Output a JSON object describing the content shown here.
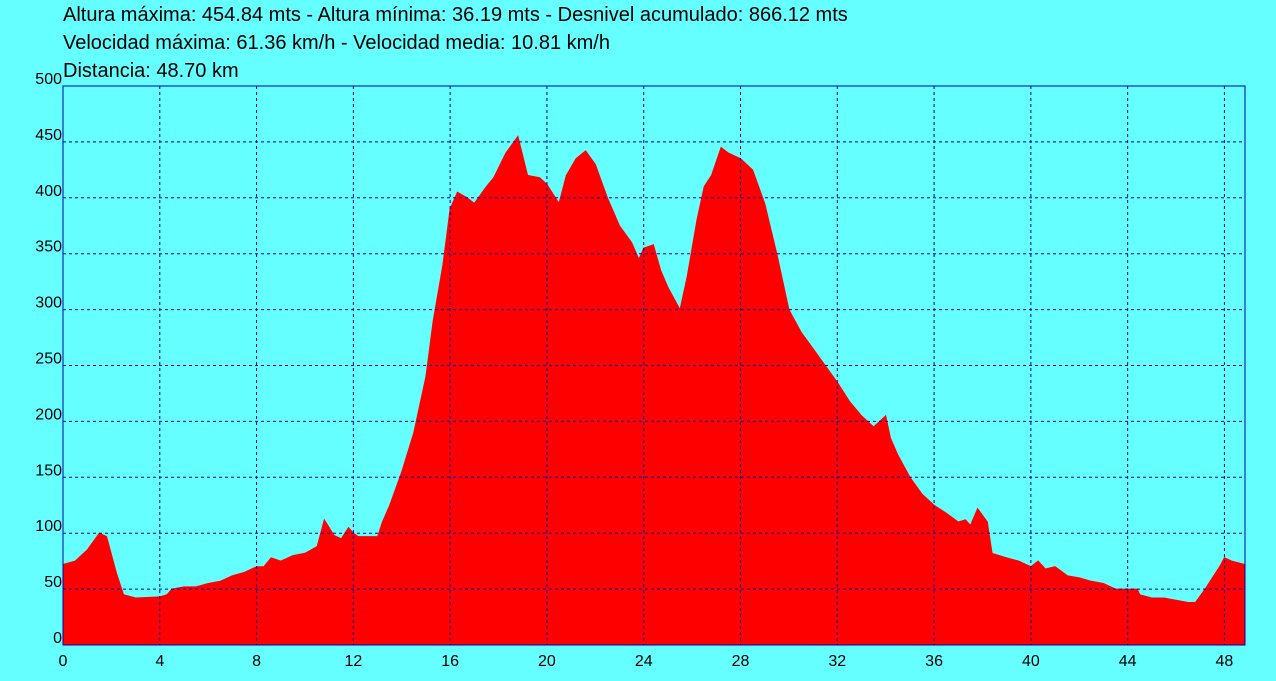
{
  "chart_data": {
    "type": "area",
    "title": "Altura máxima: 454.84 mts - Altura mínima: 36.19 mts - Desnivel acumulado: 866.12 mts",
    "subtitle": "Velocidad máxima: 61.36 km/h - Velocidad media: 10.81 km/h",
    "annotation": "Distancia: 48.70 km",
    "color": "#ff0000",
    "background": "#66ffff",
    "grid": true,
    "xlim": [
      0,
      48.85
    ],
    "xticks": [
      0,
      4,
      8,
      12,
      16,
      20,
      24,
      28,
      32,
      36,
      40,
      44,
      48
    ],
    "ylim": [
      0,
      500
    ],
    "yticks": [
      0,
      50,
      100,
      150,
      200,
      250,
      300,
      350,
      400,
      450,
      500
    ],
    "x": [
      0,
      0.5,
      1.0,
      1.5,
      1.8,
      2.2,
      2.5,
      3,
      4,
      4.3,
      4.5,
      5,
      5.5,
      6,
      6.5,
      7,
      7.5,
      8,
      8.3,
      8.6,
      9,
      9.5,
      10,
      10.5,
      10.8,
      11.2,
      11.5,
      11.8,
      12,
      12.2,
      13,
      13.2,
      13.5,
      14,
      14.5,
      15,
      15.3,
      15.7,
      16,
      16.3,
      16.7,
      17,
      17.5,
      17.8,
      18.3,
      18.8,
      19.2,
      19.7,
      20,
      20.5,
      20.8,
      21.2,
      21.6,
      22,
      22.5,
      23,
      23.5,
      23.8,
      24,
      24.4,
      24.7,
      25,
      25.5,
      25.8,
      26.2,
      26.5,
      26.8,
      27.2,
      27.5,
      28,
      28.5,
      29,
      29.5,
      30,
      30.5,
      31,
      31.5,
      32,
      32.5,
      33,
      33.5,
      34,
      34.2,
      34.5,
      35,
      35.5,
      36,
      36.5,
      37,
      37.3,
      37.5,
      37.8,
      38.2,
      38.4,
      39,
      39.5,
      40,
      40.3,
      40.6,
      41,
      41.5,
      42,
      42.5,
      43,
      43.5,
      44,
      44.4,
      44.5,
      45,
      45.5,
      46,
      46.5,
      46.8,
      47.2,
      47.5,
      47.8,
      48,
      48.3,
      48.85
    ],
    "y": [
      72,
      75,
      85,
      100,
      97,
      65,
      45,
      42,
      43,
      45,
      50,
      52,
      52,
      55,
      57,
      62,
      65,
      70,
      70,
      78,
      75,
      80,
      82,
      88,
      112,
      98,
      95,
      105,
      100,
      97,
      97,
      110,
      125,
      155,
      190,
      240,
      290,
      340,
      390,
      405,
      400,
      395,
      410,
      418,
      440,
      455,
      420,
      418,
      412,
      395,
      420,
      435,
      442,
      430,
      400,
      375,
      360,
      345,
      355,
      358,
      335,
      320,
      300,
      330,
      380,
      410,
      420,
      445,
      440,
      435,
      425,
      395,
      350,
      300,
      280,
      265,
      250,
      235,
      218,
      205,
      195,
      205,
      185,
      170,
      150,
      135,
      125,
      118,
      110,
      112,
      107,
      122,
      110,
      82,
      78,
      75,
      70,
      75,
      68,
      70,
      62,
      60,
      57,
      55,
      50,
      50,
      50,
      45,
      42,
      42,
      40,
      38,
      38,
      50,
      60,
      70,
      78,
      75,
      72
    ]
  }
}
